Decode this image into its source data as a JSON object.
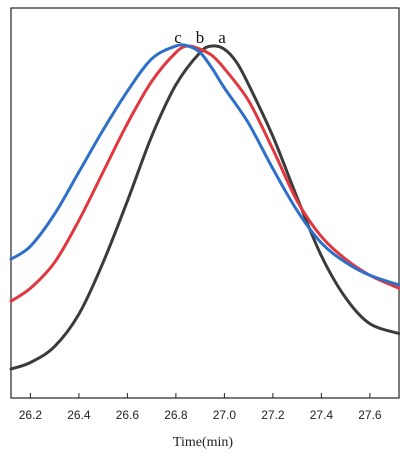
{
  "chart_data": {
    "type": "line",
    "xlabel": "Time(min)",
    "xlim": [
      26.12,
      27.72
    ],
    "ylim": [
      0,
      1
    ],
    "x_ticks": [
      "26.2",
      "26.4",
      "26.6",
      "26.8",
      "27.0",
      "27.2",
      "27.4",
      "27.6"
    ],
    "x_tick_values": [
      26.2,
      26.4,
      26.6,
      26.8,
      27.0,
      27.2,
      27.4,
      27.6
    ],
    "grid": false,
    "series": [
      {
        "name": "a",
        "color": "#3b3b3b",
        "x": [
          26.12,
          26.2,
          26.3,
          26.4,
          26.5,
          26.6,
          26.7,
          26.8,
          26.9,
          26.95,
          27.0,
          27.05,
          27.1,
          27.2,
          27.3,
          27.4,
          27.5,
          27.6,
          27.72
        ],
        "y": [
          0.0,
          0.02,
          0.07,
          0.17,
          0.33,
          0.52,
          0.72,
          0.88,
          0.98,
          1.0,
          0.99,
          0.95,
          0.88,
          0.72,
          0.53,
          0.35,
          0.22,
          0.14,
          0.11
        ]
      },
      {
        "name": "b",
        "color": "#e0383e",
        "x": [
          26.12,
          26.2,
          26.3,
          26.4,
          26.5,
          26.6,
          26.7,
          26.8,
          26.85,
          26.9,
          26.95,
          27.0,
          27.1,
          27.2,
          27.3,
          27.4,
          27.5,
          27.6,
          27.72
        ],
        "y": [
          0.21,
          0.25,
          0.33,
          0.46,
          0.61,
          0.76,
          0.89,
          0.98,
          1.0,
          0.99,
          0.97,
          0.93,
          0.83,
          0.68,
          0.52,
          0.41,
          0.34,
          0.29,
          0.25
        ]
      },
      {
        "name": "c",
        "color": "#2e6fc9",
        "x": [
          26.12,
          26.2,
          26.3,
          26.4,
          26.5,
          26.6,
          26.7,
          26.8,
          26.85,
          26.9,
          26.95,
          27.0,
          27.1,
          27.2,
          27.3,
          27.4,
          27.5,
          27.6,
          27.72
        ],
        "y": [
          0.34,
          0.38,
          0.48,
          0.61,
          0.74,
          0.86,
          0.96,
          1.0,
          1.0,
          0.98,
          0.93,
          0.87,
          0.76,
          0.62,
          0.49,
          0.39,
          0.33,
          0.29,
          0.26
        ]
      }
    ],
    "annotations": [
      "c",
      "b",
      "a"
    ]
  }
}
